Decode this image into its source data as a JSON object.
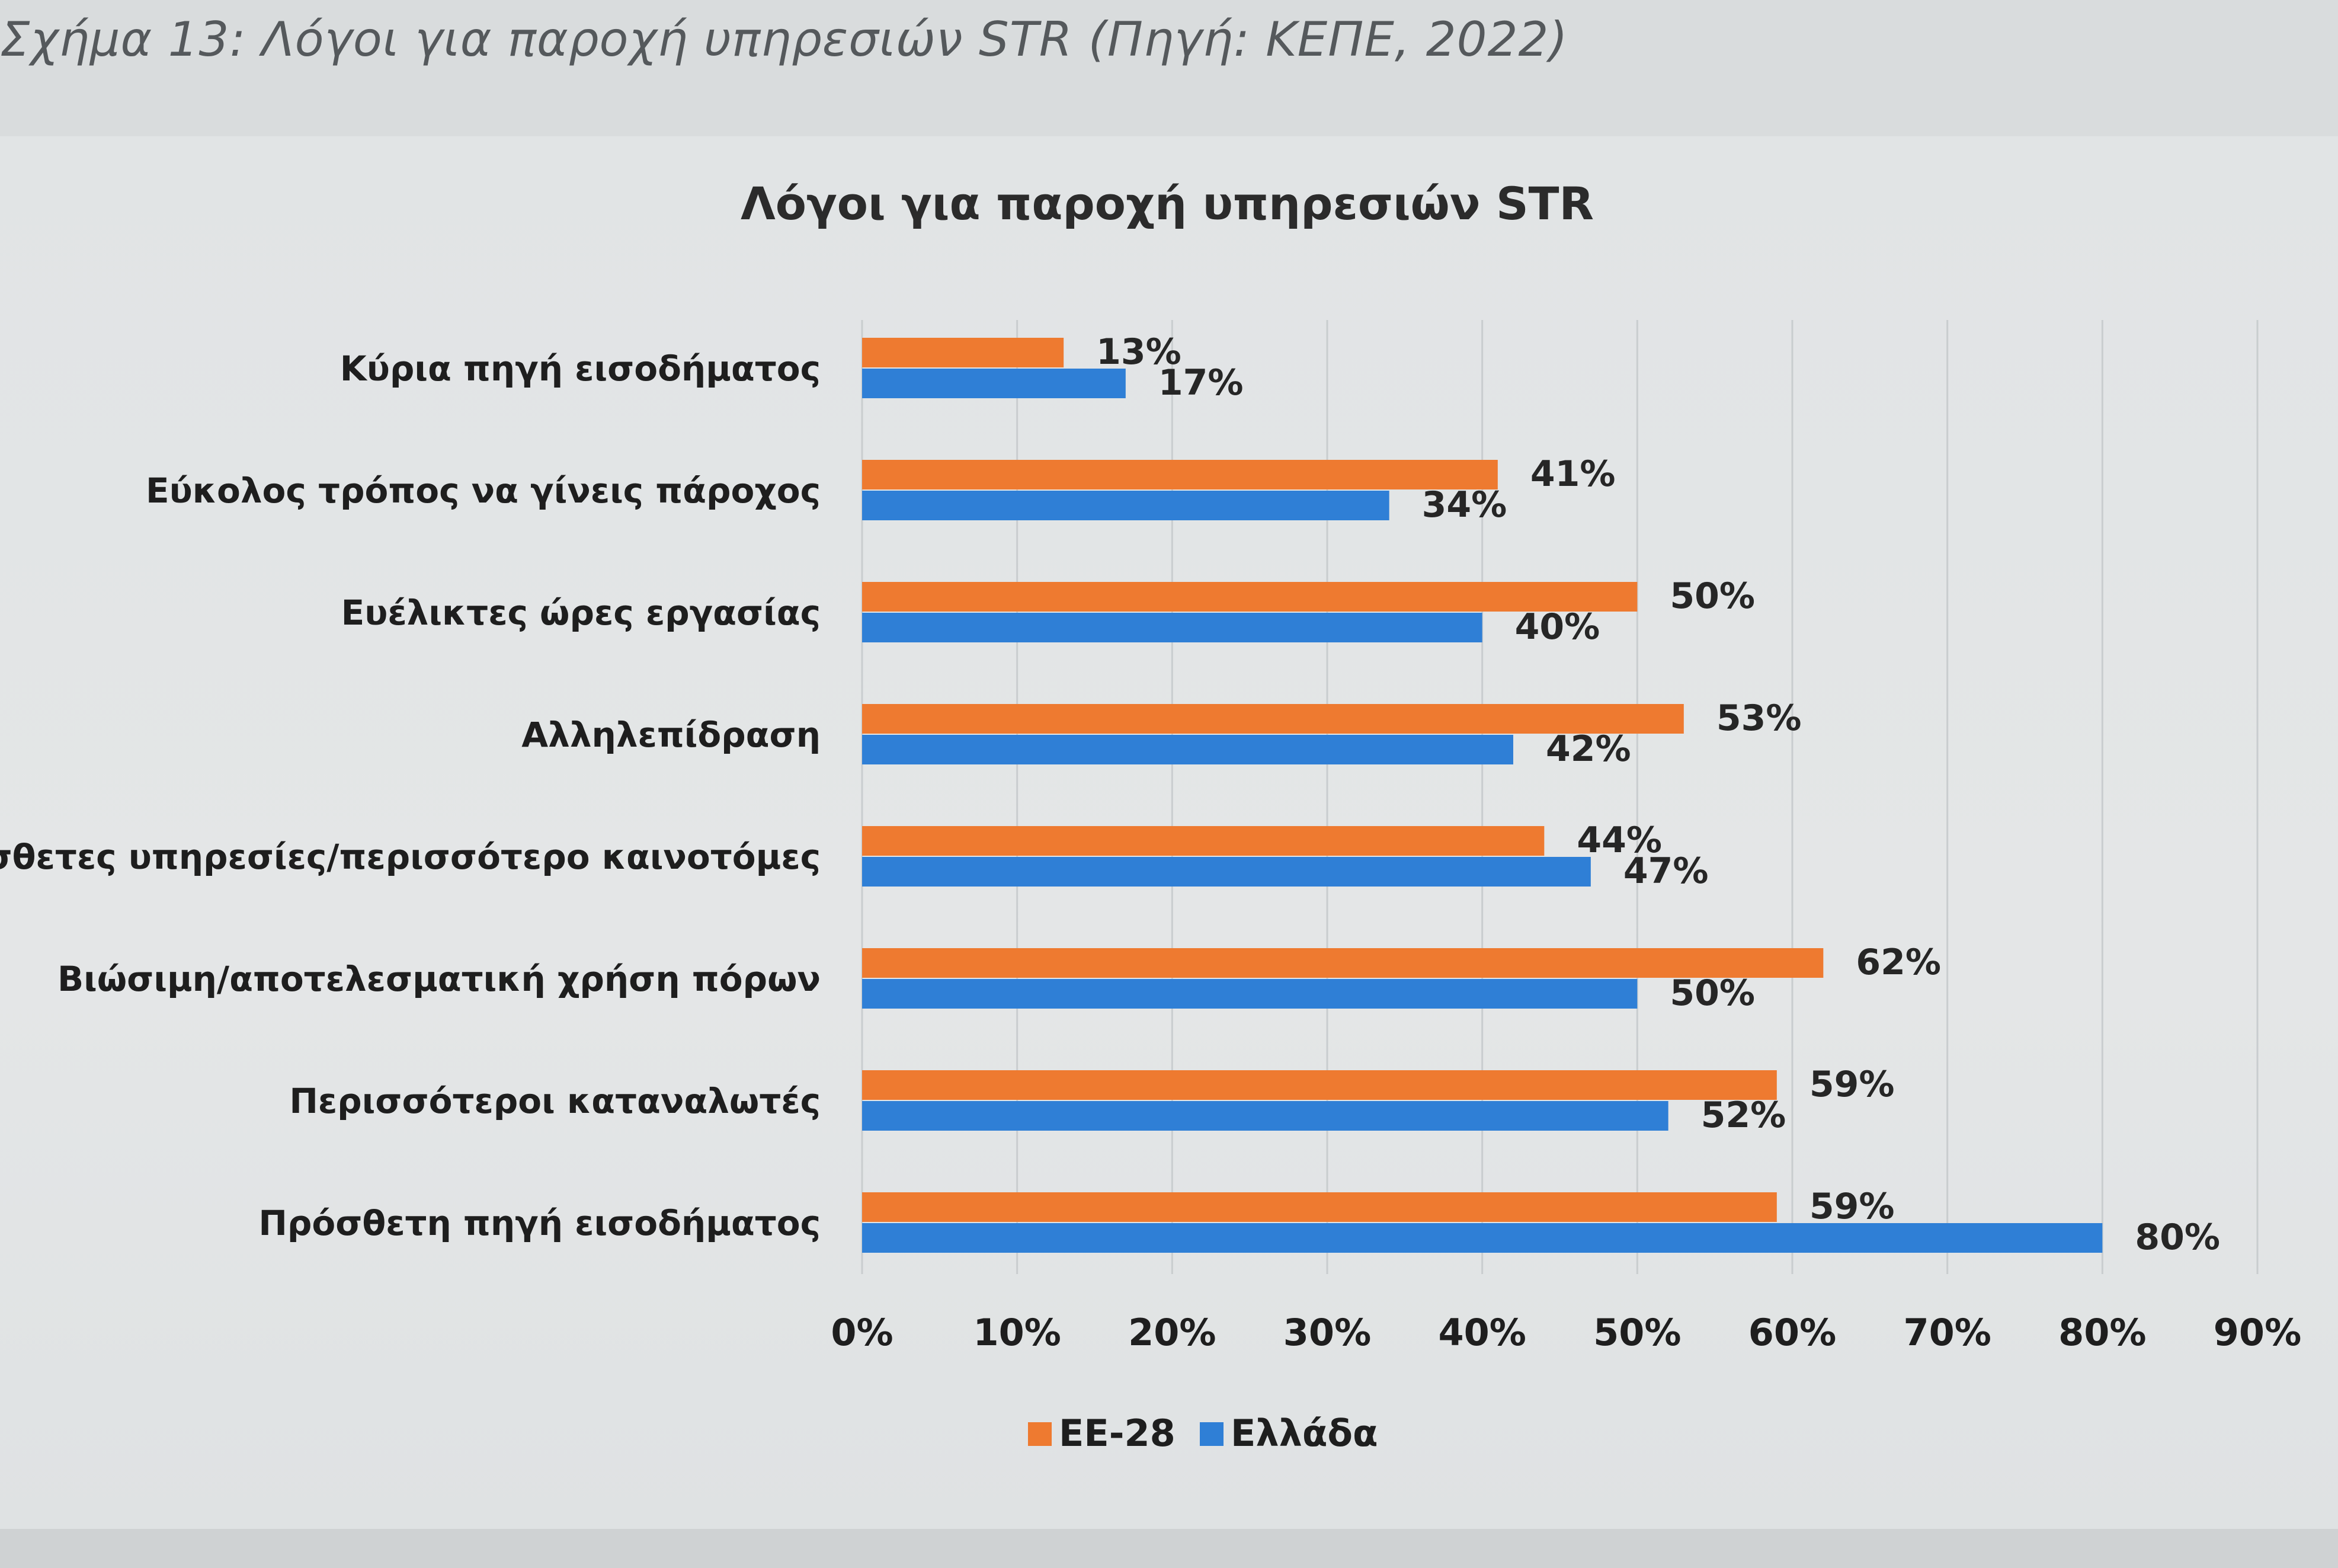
{
  "figure": {
    "caption": "Σχήμα 13: Λόγοι για παροχή υπηρεσιών STR (Πηγή: ΚΕΠΕ, 2022)"
  },
  "chart_data": {
    "type": "bar",
    "orientation": "horizontal",
    "title": "Λόγοι για παροχή υπηρεσιών STR",
    "categories": [
      "Κύρια πηγή εισοδήματος",
      "Εύκολος τρόπος να γίνεις πάροχος",
      "Ευέλικτες ώρες εργασίας",
      "Αλληλεπίδραση",
      "Πρόσθετες υπηρεσίες/περισσότερο καινοτόμες",
      "Βιώσιμη/αποτελεσματική χρήση πόρων",
      "Περισσότεροι καταναλωτές",
      "Πρόσθετη πηγή εισοδήματος"
    ],
    "series": [
      {
        "name": "ΕΕ-28",
        "color": "#ee7a30",
        "values": [
          13,
          41,
          50,
          53,
          44,
          62,
          59,
          59
        ],
        "labels": [
          "13%",
          "41%",
          "50%",
          "53%",
          "44%",
          "62%",
          "59%",
          "59%"
        ]
      },
      {
        "name": "Ελλάδα",
        "color": "#2f7fd6",
        "values": [
          17,
          34,
          40,
          42,
          47,
          50,
          52,
          80
        ],
        "labels": [
          "17%",
          "34%",
          "40%",
          "42%",
          "47%",
          "50%",
          "52%",
          "80%"
        ]
      }
    ],
    "xlim": [
      0,
      90
    ],
    "xticks": [
      0,
      10,
      20,
      30,
      40,
      50,
      60,
      70,
      80,
      90
    ],
    "xtick_labels": [
      "0%",
      "10%",
      "20%",
      "30%",
      "40%",
      "50%",
      "60%",
      "70%",
      "80%",
      "90%"
    ],
    "xlabel": "",
    "ylabel": "",
    "grid": "vertical, faint",
    "legend_position": "bottom-center"
  }
}
